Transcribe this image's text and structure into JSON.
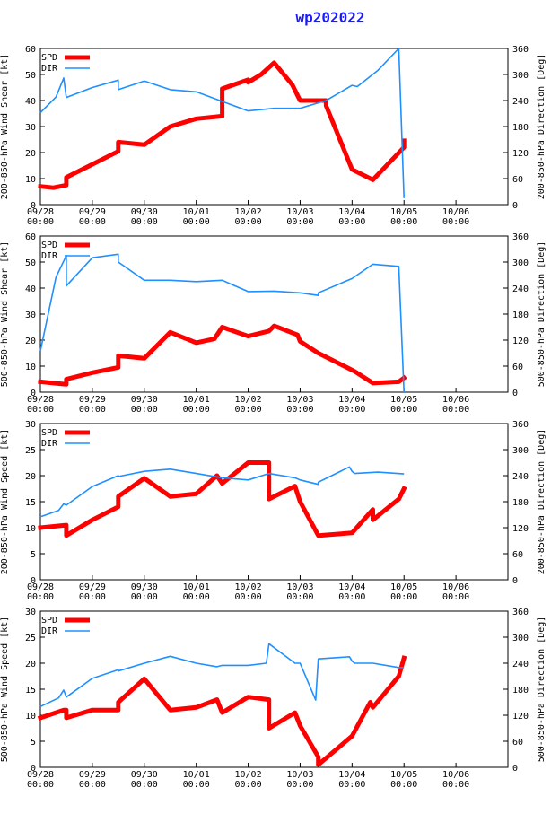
{
  "title": "wp202022",
  "colors": {
    "spd": "#ff0000",
    "dir": "#1e90ff",
    "title": "#1a1aff"
  },
  "chart_data": [
    {
      "type": "line",
      "ylabel": "200-850-hPa Wind Shear [kt]",
      "y2label": "200-850-hPa Direction [Deg]",
      "ylim": [
        0,
        60
      ],
      "yticks": [
        0,
        10,
        20,
        30,
        40,
        50,
        60
      ],
      "y2lim": [
        0,
        360
      ],
      "y2ticks": [
        0,
        60,
        120,
        180,
        240,
        300,
        360
      ],
      "xlim": [
        0,
        9
      ],
      "xticks": [
        {
          "date": "09/28",
          "time": "00:00"
        },
        {
          "date": "09/29",
          "time": "00:00"
        },
        {
          "date": "09/30",
          "time": "00:00"
        },
        {
          "date": "10/01",
          "time": "00:00"
        },
        {
          "date": "10/02",
          "time": "00:00"
        },
        {
          "date": "10/03",
          "time": "00:00"
        },
        {
          "date": "10/04",
          "time": "00:00"
        },
        {
          "date": "10/05",
          "time": "00:00"
        },
        {
          "date": "10/06",
          "time": "00:00"
        }
      ],
      "legend": [
        "SPD",
        "DIR"
      ],
      "series": [
        {
          "name": "SPD",
          "axis": "left",
          "x": [
            0,
            0.25,
            0.5,
            0.5,
            1.0,
            1.5,
            1.5,
            2.0,
            2.5,
            3.0,
            3.5,
            3.5,
            4.0,
            4.0,
            4.25,
            4.5,
            4.85,
            5.0,
            5.5,
            5.5,
            6.0,
            6.4,
            7.0,
            7.0
          ],
          "y": [
            7,
            6.5,
            7.5,
            10.5,
            15.5,
            20.5,
            24,
            23,
            30,
            33,
            34,
            44.5,
            48,
            47,
            50,
            54.5,
            46,
            40,
            40,
            38,
            13.5,
            9.5,
            22,
            24.5
          ]
        },
        {
          "name": "DIR",
          "axis": "right",
          "x": [
            0,
            0.3,
            0.45,
            0.5,
            1.0,
            1.5,
            1.5,
            2.0,
            2.5,
            3.0,
            3.5,
            4.0,
            4.5,
            5.0,
            5.5,
            6.0,
            6.1,
            6.5,
            6.9,
            7.0
          ],
          "y": [
            212,
            248,
            292,
            247,
            270,
            287,
            265,
            285,
            265,
            260,
            238,
            216,
            222,
            222,
            240,
            275,
            272,
            310,
            360,
            15
          ]
        }
      ]
    },
    {
      "type": "line",
      "ylabel": "500-850-hPa Wind Shear [kt]",
      "y2label": "500-850-hPa Direction [Deg]",
      "ylim": [
        0,
        60
      ],
      "yticks": [
        0,
        10,
        20,
        30,
        40,
        50,
        60
      ],
      "y2lim": [
        0,
        360
      ],
      "y2ticks": [
        0,
        60,
        120,
        180,
        240,
        300,
        360
      ],
      "xlim": [
        0,
        9
      ],
      "xticks": [
        {
          "date": "09/28",
          "time": "00:00"
        },
        {
          "date": "09/29",
          "time": "00:00"
        },
        {
          "date": "09/30",
          "time": "00:00"
        },
        {
          "date": "10/01",
          "time": "00:00"
        },
        {
          "date": "10/02",
          "time": "00:00"
        },
        {
          "date": "10/03",
          "time": "00:00"
        },
        {
          "date": "10/04",
          "time": "00:00"
        },
        {
          "date": "10/05",
          "time": "00:00"
        },
        {
          "date": "10/06",
          "time": "00:00"
        }
      ],
      "legend": [
        "SPD",
        "DIR"
      ],
      "series": [
        {
          "name": "SPD",
          "axis": "left",
          "x": [
            0,
            0.25,
            0.5,
            0.5,
            1.0,
            1.5,
            1.5,
            2.0,
            2.5,
            3.0,
            3.35,
            3.5,
            4.0,
            4.4,
            4.5,
            4.95,
            5.0,
            5.35,
            5.95,
            6.05,
            6.4,
            6.9,
            7.0
          ],
          "y": [
            4,
            3.5,
            3,
            5,
            7.5,
            9.5,
            14,
            13,
            23,
            19,
            20.5,
            25,
            21.5,
            23.5,
            25.5,
            22,
            19.5,
            15,
            9,
            8,
            3.5,
            4,
            5.5
          ]
        },
        {
          "name": "DIR",
          "axis": "right",
          "x": [
            0,
            0.3,
            0.5,
            0.5,
            1.0,
            1.5,
            1.5,
            2.0,
            2.5,
            3.0,
            3.5,
            4.0,
            4.5,
            5.0,
            5.35,
            5.35,
            6.0,
            6.4,
            6.9,
            7.0
          ],
          "y": [
            95,
            265,
            315,
            245,
            310,
            318,
            300,
            258,
            258,
            255,
            258,
            232,
            233,
            229,
            223,
            229,
            262,
            295,
            290,
            0
          ]
        }
      ]
    },
    {
      "type": "line",
      "ylabel": "200-850-hPa Wind Speed [kt]",
      "y2label": "200-850-hPa Direction [Deg]",
      "ylim": [
        0,
        30
      ],
      "yticks": [
        0,
        5,
        10,
        15,
        20,
        25,
        30
      ],
      "y2lim": [
        0,
        360
      ],
      "y2ticks": [
        0,
        60,
        120,
        180,
        240,
        300,
        360
      ],
      "xlim": [
        0,
        9
      ],
      "xticks": [
        {
          "date": "09/28",
          "time": "00:00"
        },
        {
          "date": "09/29",
          "time": "00:00"
        },
        {
          "date": "09/30",
          "time": "00:00"
        },
        {
          "date": "10/01",
          "time": "00:00"
        },
        {
          "date": "10/02",
          "time": "00:00"
        },
        {
          "date": "10/03",
          "time": "00:00"
        },
        {
          "date": "10/04",
          "time": "00:00"
        },
        {
          "date": "10/05",
          "time": "00:00"
        },
        {
          "date": "10/06",
          "time": "00:00"
        }
      ],
      "legend": [
        "SPD",
        "DIR"
      ],
      "series": [
        {
          "name": "SPD",
          "axis": "left",
          "x": [
            0,
            0.5,
            0.5,
            1.0,
            1.5,
            1.5,
            2.0,
            2.5,
            3.0,
            3.4,
            3.5,
            4.0,
            4.4,
            4.4,
            4.9,
            5.0,
            5.35,
            6.0,
            6.4,
            6.4,
            6.9,
            7.0
          ],
          "y": [
            10,
            10.5,
            8.5,
            11.5,
            14,
            16,
            19.5,
            16,
            16.5,
            20,
            18.5,
            22.5,
            22.5,
            15.5,
            18,
            15,
            8.5,
            9,
            13.5,
            11.5,
            15.5,
            17.5
          ]
        },
        {
          "name": "DIR",
          "axis": "right",
          "x": [
            0,
            0.35,
            0.45,
            0.5,
            1.0,
            1.5,
            1.5,
            2.0,
            2.5,
            3.0,
            3.5,
            4.0,
            4.4,
            4.9,
            5.0,
            5.35,
            5.35,
            5.95,
            6.0,
            6.05,
            6.5,
            7.0
          ],
          "y": [
            145,
            160,
            175,
            172,
            215,
            240,
            238,
            250,
            255,
            245,
            235,
            230,
            245,
            235,
            230,
            220,
            225,
            260,
            250,
            245,
            248,
            244
          ]
        }
      ]
    },
    {
      "type": "line",
      "ylabel": "500-850-hPa Wind Speed [kt]",
      "y2label": "500-850-hPa Direction [Deg]",
      "ylim": [
        0,
        30
      ],
      "yticks": [
        0,
        5,
        10,
        15,
        20,
        25,
        30
      ],
      "y2lim": [
        0,
        360
      ],
      "y2ticks": [
        0,
        60,
        120,
        180,
        240,
        300,
        360
      ],
      "xlim": [
        0,
        9
      ],
      "xticks": [
        {
          "date": "09/28",
          "time": "00:00"
        },
        {
          "date": "09/29",
          "time": "00:00"
        },
        {
          "date": "09/30",
          "time": "00:00"
        },
        {
          "date": "10/01",
          "time": "00:00"
        },
        {
          "date": "10/02",
          "time": "00:00"
        },
        {
          "date": "10/03",
          "time": "00:00"
        },
        {
          "date": "10/04",
          "time": "00:00"
        },
        {
          "date": "10/05",
          "time": "00:00"
        },
        {
          "date": "10/06",
          "time": "00:00"
        }
      ],
      "legend": [
        "SPD",
        "DIR"
      ],
      "series": [
        {
          "name": "SPD",
          "axis": "left",
          "x": [
            0,
            0.45,
            0.5,
            0.5,
            1.0,
            1.5,
            1.5,
            2.0,
            2.5,
            3.0,
            3.4,
            3.5,
            4.0,
            4.4,
            4.4,
            4.9,
            5.0,
            5.35,
            5.35,
            6.0,
            6.35,
            6.4,
            6.9,
            7.0
          ],
          "y": [
            9.5,
            11,
            11,
            9.5,
            11,
            11,
            12.5,
            17,
            11,
            11.5,
            13,
            10.5,
            13.5,
            13,
            7.5,
            10.5,
            8,
            2,
            0.5,
            6,
            12.5,
            11.5,
            17.5,
            21
          ]
        },
        {
          "name": "DIR",
          "axis": "right",
          "x": [
            0,
            0.35,
            0.45,
            0.5,
            1.0,
            1.5,
            1.5,
            2.0,
            2.5,
            3.0,
            3.4,
            3.5,
            4.0,
            4.35,
            4.4,
            4.9,
            5.0,
            5.3,
            5.35,
            5.95,
            6.0,
            6.05,
            6.4,
            6.9,
            7.0
          ],
          "y": [
            140,
            160,
            178,
            162,
            205,
            225,
            222,
            240,
            256,
            240,
            232,
            235,
            235,
            240,
            285,
            240,
            240,
            155,
            250,
            255,
            245,
            240,
            240,
            230,
            230
          ]
        }
      ]
    }
  ]
}
